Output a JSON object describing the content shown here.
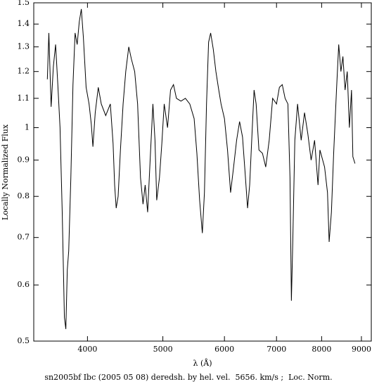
{
  "chart_data": {
    "type": "line",
    "xlabel": "λ (Å)",
    "ylabel": "Locally Normalized Flux",
    "caption": "sn2005bf Ibc (2005 05 08) deredsh. by hel. vel.  5656. km/s ;  Loc. Norm.",
    "xscale": "log",
    "yscale": "log",
    "xlim": [
      3412,
      9267
    ],
    "ylim": [
      0.5,
      1.5
    ],
    "xticks": [
      4000,
      5000,
      6000,
      7000,
      8000,
      9000
    ],
    "yticks": [
      0.5,
      0.6,
      0.7,
      0.8,
      0.9,
      1,
      1.1,
      1.2,
      1.3,
      1.4,
      1.5
    ],
    "x": [
      3552,
      3568,
      3592,
      3616,
      3640,
      3664,
      3688,
      3712,
      3736,
      3752,
      3768,
      3784,
      3808,
      3832,
      3856,
      3880,
      3904,
      3928,
      3952,
      3984,
      4019,
      4046,
      4065,
      4093,
      4130,
      4167,
      4222,
      4280,
      4315,
      4335,
      4355,
      4380,
      4410,
      4445,
      4480,
      4520,
      4555,
      4600,
      4640,
      4680,
      4715,
      4745,
      4780,
      4820,
      4855,
      4885,
      4910,
      4950,
      4985,
      5020,
      5070,
      5115,
      5160,
      5205,
      5275,
      5345,
      5415,
      5485,
      5530,
      5575,
      5620,
      5655,
      5690,
      5725,
      5760,
      5805,
      5850,
      5900,
      5940,
      6000,
      6055,
      6110,
      6165,
      6220,
      6275,
      6330,
      6385,
      6425,
      6465,
      6510,
      6550,
      6590,
      6645,
      6715,
      6780,
      6850,
      6920,
      7000,
      7060,
      7120,
      7180,
      7240,
      7285,
      7315,
      7345,
      7390,
      7450,
      7530,
      7605,
      7680,
      7755,
      7835,
      7915,
      7960,
      8070,
      8140,
      8180,
      8235,
      8290,
      8360,
      8415,
      8470,
      8520,
      8575,
      8630,
      8685,
      8740,
      8775,
      8830
    ],
    "series": [
      {
        "color": "#000000",
        "values": [
          1.17,
          1.36,
          1.07,
          1.22,
          1.31,
          1.15,
          1.0,
          0.76,
          0.54,
          0.52,
          0.63,
          0.67,
          0.85,
          1.15,
          1.36,
          1.31,
          1.41,
          1.47,
          1.34,
          1.14,
          1.08,
          1.01,
          0.94,
          1.05,
          1.14,
          1.08,
          1.04,
          1.08,
          0.95,
          0.83,
          0.77,
          0.8,
          0.93,
          1.08,
          1.2,
          1.3,
          1.25,
          1.2,
          1.08,
          0.85,
          0.78,
          0.83,
          0.76,
          0.92,
          1.08,
          0.96,
          0.79,
          0.85,
          0.95,
          1.08,
          1.0,
          1.13,
          1.15,
          1.1,
          1.09,
          1.1,
          1.08,
          1.03,
          0.92,
          0.79,
          0.71,
          0.81,
          1.08,
          1.32,
          1.36,
          1.29,
          1.2,
          1.13,
          1.08,
          1.03,
          0.93,
          0.81,
          0.88,
          0.96,
          1.02,
          0.97,
          0.85,
          0.77,
          0.83,
          0.98,
          1.13,
          1.08,
          0.93,
          0.92,
          0.88,
          0.96,
          1.1,
          1.08,
          1.14,
          1.15,
          1.1,
          1.08,
          0.85,
          0.57,
          0.69,
          0.96,
          1.08,
          0.96,
          1.05,
          0.98,
          0.9,
          0.96,
          0.83,
          0.93,
          0.88,
          0.81,
          0.69,
          0.76,
          0.92,
          1.13,
          1.31,
          1.2,
          1.26,
          1.13,
          1.2,
          1.0,
          1.13,
          0.91,
          0.89
        ]
      }
    ]
  }
}
